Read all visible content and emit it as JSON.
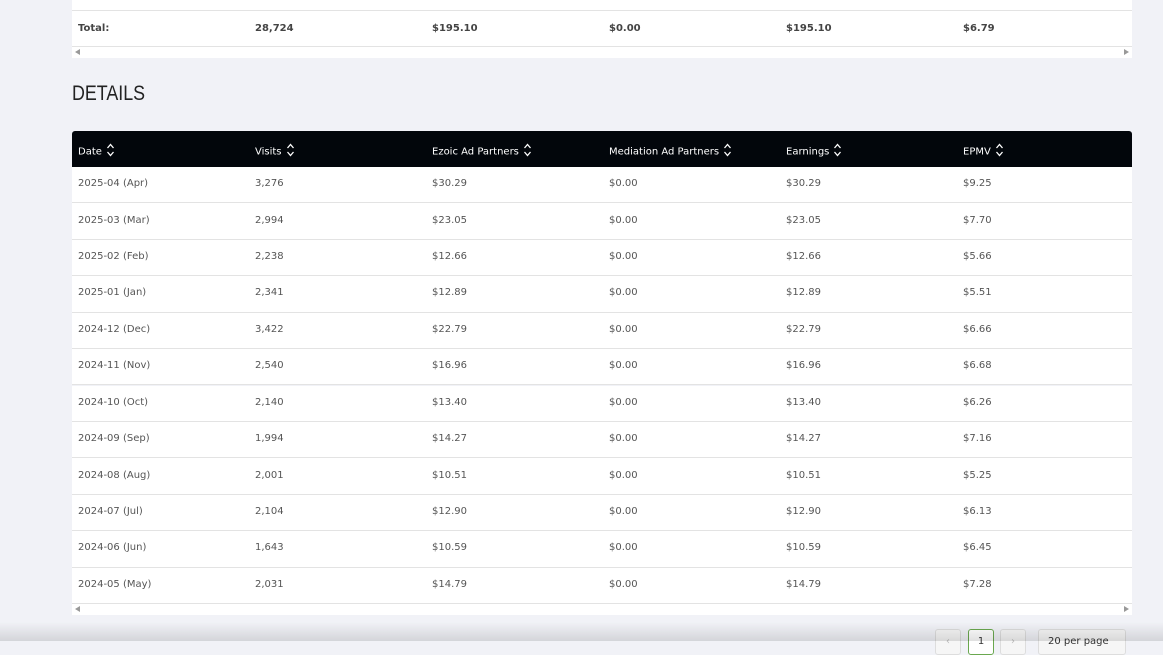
{
  "totals": {
    "label": "Total:",
    "cells": [
      "28,724",
      "$195.10",
      "$0.00",
      "$195.10",
      "$6.79"
    ]
  },
  "details": {
    "title": "DETAILS",
    "columns": [
      "Date",
      "Visits",
      "Ezoic Ad Partners",
      "Mediation Ad Partners",
      "Earnings",
      "EPMV"
    ],
    "rows": [
      [
        "2025-04 (Apr)",
        "3,276",
        "$30.29",
        "$0.00",
        "$30.29",
        "$9.25"
      ],
      [
        "2025-03 (Mar)",
        "2,994",
        "$23.05",
        "$0.00",
        "$23.05",
        "$7.70"
      ],
      [
        "2025-02 (Feb)",
        "2,238",
        "$12.66",
        "$0.00",
        "$12.66",
        "$5.66"
      ],
      [
        "2025-01 (Jan)",
        "2,341",
        "$12.89",
        "$0.00",
        "$12.89",
        "$5.51"
      ],
      [
        "2024-12 (Dec)",
        "3,422",
        "$22.79",
        "$0.00",
        "$22.79",
        "$6.66"
      ],
      [
        "2024-11 (Nov)",
        "2,540",
        "$16.96",
        "$0.00",
        "$16.96",
        "$6.68"
      ],
      [
        "2024-10 (Oct)",
        "2,140",
        "$13.40",
        "$0.00",
        "$13.40",
        "$6.26"
      ],
      [
        "2024-09 (Sep)",
        "1,994",
        "$14.27",
        "$0.00",
        "$14.27",
        "$7.16"
      ],
      [
        "2024-08 (Aug)",
        "2,001",
        "$10.51",
        "$0.00",
        "$10.51",
        "$5.25"
      ],
      [
        "2024-07 (Jul)",
        "2,104",
        "$12.90",
        "$0.00",
        "$12.90",
        "$6.13"
      ],
      [
        "2024-06 (Jun)",
        "1,643",
        "$10.59",
        "$0.00",
        "$10.59",
        "$6.45"
      ],
      [
        "2024-05 (May)",
        "2,031",
        "$14.79",
        "$0.00",
        "$14.79",
        "$7.28"
      ]
    ]
  },
  "pagination": {
    "page": "1",
    "per_page": "20 per page"
  }
}
